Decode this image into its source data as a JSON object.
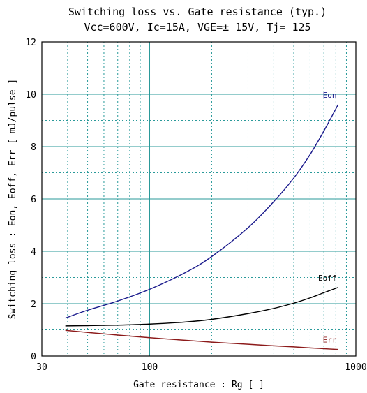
{
  "chart_data": {
    "type": "line",
    "title": "Switching loss  vs.  Gate resistance (typ.)",
    "subtitle": "Vcc=600V, Ic=15A, VGE=± 15V, Tj= 125",
    "xlabel": "Gate resistance  :  Rg  [      ]",
    "ylabel": "Switching loss  :  Eon, Eoff, Err  [ mJ/pulse ]",
    "x_scale": "log",
    "xlim": [
      30,
      1000
    ],
    "ylim": [
      0,
      12
    ],
    "x_ticks": [
      30,
      100,
      1000
    ],
    "x_tick_labels": [
      "30",
      "100",
      "1000"
    ],
    "y_ticks": [
      0,
      2,
      4,
      6,
      8,
      10,
      12
    ],
    "y_tick_labels": [
      "0",
      "2",
      "4",
      "6",
      "8",
      "10",
      "12"
    ],
    "grid": true,
    "series": [
      {
        "name": "Eon",
        "color": "#1a1a8c",
        "x": [
          39,
          50,
          70,
          100,
          150,
          200,
          300,
          400,
          500,
          600,
          700,
          820
        ],
        "y": [
          1.45,
          1.75,
          2.1,
          2.55,
          3.2,
          3.8,
          4.9,
          5.9,
          6.8,
          7.7,
          8.6,
          9.6
        ]
      },
      {
        "name": "Eoff",
        "color": "#000000",
        "x": [
          39,
          50,
          70,
          100,
          150,
          200,
          300,
          400,
          500,
          600,
          700,
          820
        ],
        "y": [
          1.15,
          1.16,
          1.18,
          1.22,
          1.3,
          1.4,
          1.62,
          1.82,
          2.02,
          2.22,
          2.42,
          2.62
        ]
      },
      {
        "name": "Err",
        "color": "#8c1a1a",
        "x": [
          39,
          50,
          70,
          100,
          150,
          200,
          300,
          400,
          500,
          600,
          700,
          820
        ],
        "y": [
          0.98,
          0.9,
          0.8,
          0.7,
          0.6,
          0.53,
          0.45,
          0.39,
          0.35,
          0.31,
          0.28,
          0.25
        ]
      }
    ]
  }
}
